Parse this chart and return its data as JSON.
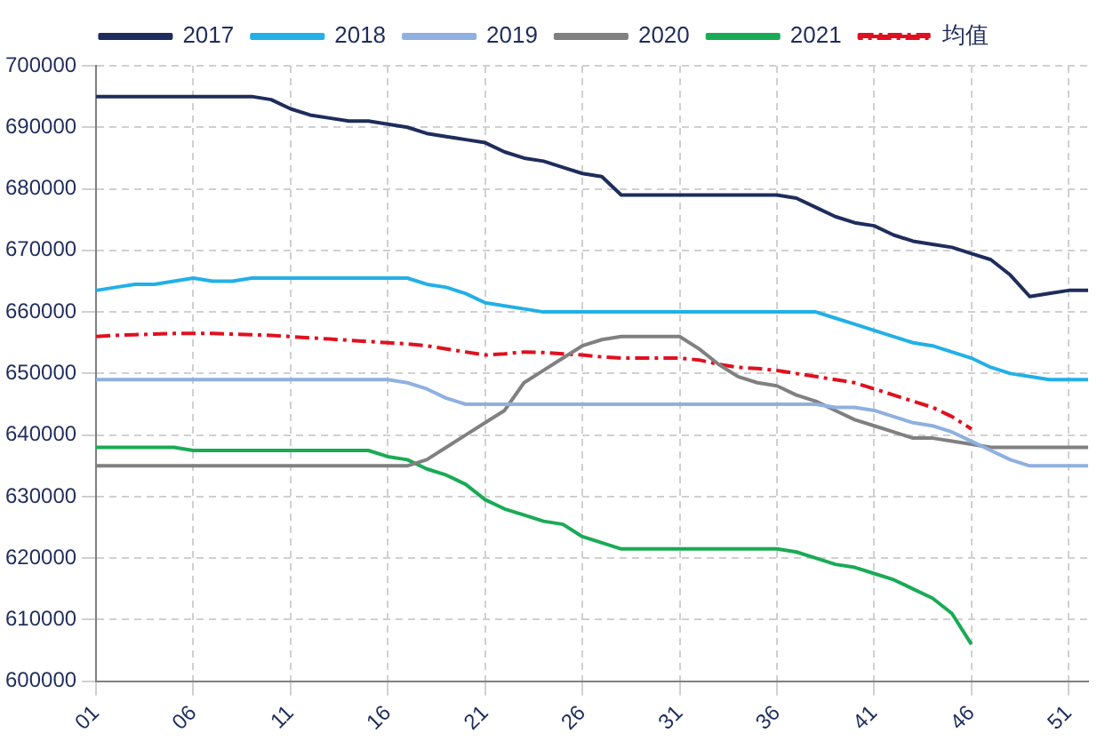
{
  "chart_data": {
    "type": "line",
    "categories": [
      "01",
      null,
      null,
      null,
      null,
      "06",
      null,
      null,
      null,
      null,
      "11",
      null,
      null,
      null,
      null,
      "16",
      null,
      null,
      null,
      null,
      "21",
      null,
      null,
      null,
      null,
      "26",
      null,
      null,
      null,
      null,
      "31",
      null,
      null,
      null,
      null,
      "36",
      null,
      null,
      null,
      null,
      "41",
      null,
      null,
      null,
      null,
      "46",
      null,
      null,
      null,
      null,
      "51",
      null
    ],
    "series": [
      {
        "name": "2017",
        "color": "#1f2d5c",
        "values": [
          695000,
          695000,
          695000,
          695000,
          695000,
          695000,
          695000,
          695000,
          695000,
          694500,
          693000,
          692000,
          691500,
          691000,
          691000,
          690500,
          690000,
          689000,
          688500,
          688000,
          687500,
          686000,
          685000,
          684500,
          683500,
          682500,
          682000,
          679000,
          679000,
          679000,
          679000,
          679000,
          679000,
          679000,
          679000,
          679000,
          678500,
          677000,
          675500,
          674500,
          674000,
          672500,
          671500,
          671000,
          670500,
          669500,
          668500,
          666000,
          662500,
          663000,
          663500,
          663500
        ]
      },
      {
        "name": "2018",
        "color": "#22b0e6",
        "values": [
          663500,
          664000,
          664500,
          664500,
          665000,
          665500,
          665000,
          665000,
          665500,
          665500,
          665500,
          665500,
          665500,
          665500,
          665500,
          665500,
          665500,
          664500,
          664000,
          663000,
          661500,
          661000,
          660500,
          660000,
          660000,
          660000,
          660000,
          660000,
          660000,
          660000,
          660000,
          660000,
          660000,
          660000,
          660000,
          660000,
          660000,
          660000,
          659000,
          658000,
          657000,
          656000,
          655000,
          654500,
          653500,
          652500,
          651000,
          650000,
          649500,
          649000,
          649000,
          649000
        ]
      },
      {
        "name": "2019",
        "color": "#8fb0e0",
        "values": [
          649000,
          649000,
          649000,
          649000,
          649000,
          649000,
          649000,
          649000,
          649000,
          649000,
          649000,
          649000,
          649000,
          649000,
          649000,
          649000,
          648500,
          647500,
          646000,
          645000,
          645000,
          645000,
          645000,
          645000,
          645000,
          645000,
          645000,
          645000,
          645000,
          645000,
          645000,
          645000,
          645000,
          645000,
          645000,
          645000,
          645000,
          645000,
          644500,
          644500,
          644000,
          643000,
          642000,
          641500,
          640500,
          639000,
          637500,
          636000,
          635000,
          635000,
          635000,
          635000
        ]
      },
      {
        "name": "2020",
        "color": "#808080",
        "values": [
          635000,
          635000,
          635000,
          635000,
          635000,
          635000,
          635000,
          635000,
          635000,
          635000,
          635000,
          635000,
          635000,
          635000,
          635000,
          635000,
          635000,
          636000,
          638000,
          640000,
          642000,
          644000,
          648500,
          650500,
          652500,
          654500,
          655500,
          656000,
          656000,
          656000,
          656000,
          654000,
          651500,
          649500,
          648500,
          648000,
          646500,
          645500,
          644000,
          642500,
          641500,
          640500,
          639500,
          639500,
          639000,
          638500,
          638000,
          638000,
          638000,
          638000,
          638000,
          638000
        ]
      },
      {
        "name": "2021",
        "color": "#1aaa55",
        "values": [
          638000,
          638000,
          638000,
          638000,
          638000,
          637500,
          637500,
          637500,
          637500,
          637500,
          637500,
          637500,
          637500,
          637500,
          637500,
          636500,
          636000,
          634500,
          633500,
          632000,
          629500,
          628000,
          627000,
          626000,
          625500,
          623500,
          622500,
          621500,
          621500,
          621500,
          621500,
          621500,
          621500,
          621500,
          621500,
          621500,
          621000,
          620000,
          619000,
          618500,
          617500,
          616500,
          615000,
          613500,
          611000,
          606000,
          null,
          null,
          null,
          null,
          null,
          null
        ]
      },
      {
        "name": "均值",
        "color": "#e01020",
        "line_style": "dashed",
        "values": [
          656000,
          656200,
          656300,
          656400,
          656500,
          656500,
          656500,
          656400,
          656300,
          656200,
          656000,
          655800,
          655600,
          655400,
          655200,
          655000,
          654800,
          654500,
          654000,
          653500,
          653000,
          653200,
          653500,
          653400,
          653200,
          653000,
          652700,
          652500,
          652500,
          652500,
          652500,
          652200,
          651500,
          651000,
          650800,
          650500,
          650000,
          649500,
          649000,
          648500,
          647500,
          646500,
          645500,
          644500,
          643000,
          641000,
          null,
          null,
          null,
          null,
          null,
          null
        ]
      }
    ],
    "ylim": [
      600000,
      700000
    ],
    "yticks": [
      600000,
      610000,
      620000,
      630000,
      640000,
      650000,
      660000,
      670000,
      680000,
      690000,
      700000
    ],
    "grid": true,
    "legend": "top",
    "marker": "none",
    "line_style": "solid"
  }
}
